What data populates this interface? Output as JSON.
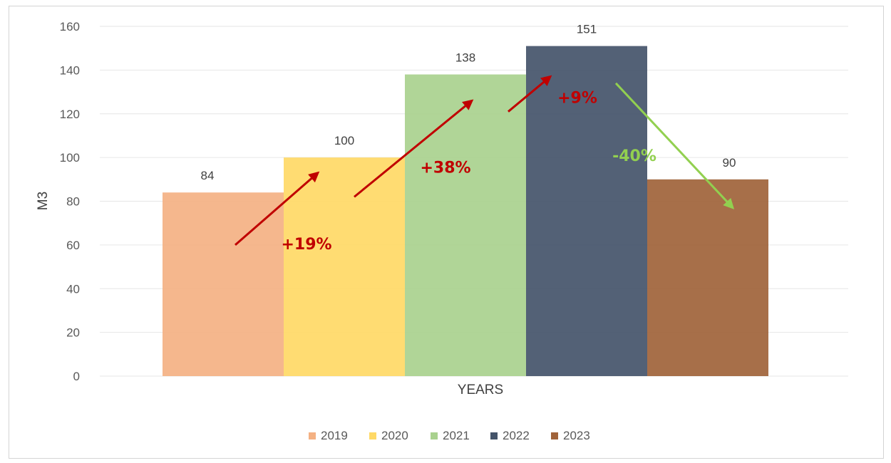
{
  "chart_data": {
    "type": "bar",
    "title": "",
    "xlabel": "YEARS",
    "ylabel": "M3",
    "ylim": [
      0,
      160
    ],
    "yticks": [
      0,
      20,
      40,
      60,
      80,
      100,
      120,
      140,
      160
    ],
    "grid": true,
    "legend_position": "bottom",
    "series": [
      {
        "name": "2019",
        "values": [
          84
        ],
        "color": "#F4B183"
      },
      {
        "name": "2020",
        "values": [
          100
        ],
        "color": "#FFD966"
      },
      {
        "name": "2021",
        "values": [
          138
        ],
        "color": "#A9D18E"
      },
      {
        "name": "2022",
        "values": [
          151
        ],
        "color": "#44546A"
      },
      {
        "name": "2023",
        "values": [
          90
        ],
        "color": "#A0633A"
      }
    ],
    "annotations": [
      {
        "text": "+19%",
        "color": "#C00000",
        "from": "2019",
        "to": "2020"
      },
      {
        "text": "+38%",
        "color": "#C00000",
        "from": "2020",
        "to": "2021"
      },
      {
        "text": "+9%",
        "color": "#C00000",
        "from": "2021",
        "to": "2022"
      },
      {
        "text": "-40%",
        "color": "#92D050",
        "from": "2022",
        "to": "2023"
      }
    ]
  }
}
